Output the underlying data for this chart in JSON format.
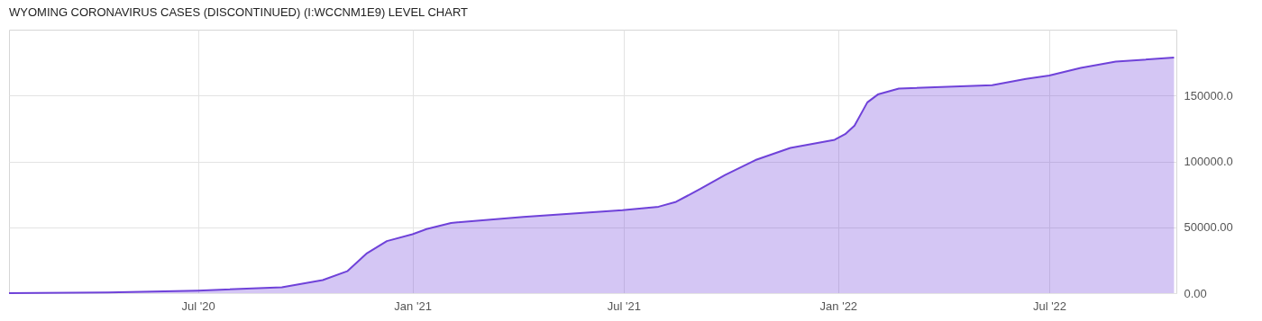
{
  "chart_data": {
    "type": "area",
    "title": "WYOMING CORONAVIRUS CASES (DISCONTINUED) (I:WCCNM1E9) LEVEL CHART",
    "x": [
      "2020-01-21",
      "2020-04-15",
      "2020-07-01",
      "2020-09-11",
      "2020-10-16",
      "2020-11-06",
      "2020-11-23",
      "2020-12-10",
      "2021-01-01",
      "2021-01-13",
      "2021-02-03",
      "2021-04-06",
      "2021-06-30",
      "2021-07-31",
      "2021-08-15",
      "2021-09-05",
      "2021-09-26",
      "2021-10-22",
      "2021-11-21",
      "2021-12-29",
      "2022-01-07",
      "2022-01-15",
      "2022-01-26",
      "2022-02-04",
      "2022-02-22",
      "2022-05-13",
      "2022-06-11",
      "2022-07-01",
      "2022-07-28",
      "2022-08-27",
      "2022-10-16"
    ],
    "series": [
      {
        "color": "#6f42d9",
        "values": [
          0,
          500,
          1900,
          4400,
          9900,
          16600,
          30300,
          39500,
          44700,
          48600,
          53300,
          57900,
          63000,
          65600,
          69300,
          79200,
          89700,
          101000,
          110200,
          116400,
          120700,
          127200,
          144800,
          150800,
          155300,
          157900,
          162600,
          165200,
          171000,
          175700,
          178800
        ]
      }
    ],
    "xlim": [
      "2020-01-21",
      "2022-10-18"
    ],
    "xticks": [
      {
        "value": "2020-07-01",
        "label": "Jul '20"
      },
      {
        "value": "2021-01-01",
        "label": "Jan '21"
      },
      {
        "value": "2021-07-01",
        "label": "Jul '21"
      },
      {
        "value": "2022-01-01",
        "label": "Jan '22"
      },
      {
        "value": "2022-07-01",
        "label": "Jul '22"
      }
    ],
    "ylim": [
      0,
      200000
    ],
    "yticks": [
      {
        "value": 0,
        "label": "0.00"
      },
      {
        "value": 50000,
        "label": "50000.00"
      },
      {
        "value": 100000,
        "label": "100000.0"
      },
      {
        "value": 150000,
        "label": "150000.0"
      }
    ],
    "grid": true
  }
}
